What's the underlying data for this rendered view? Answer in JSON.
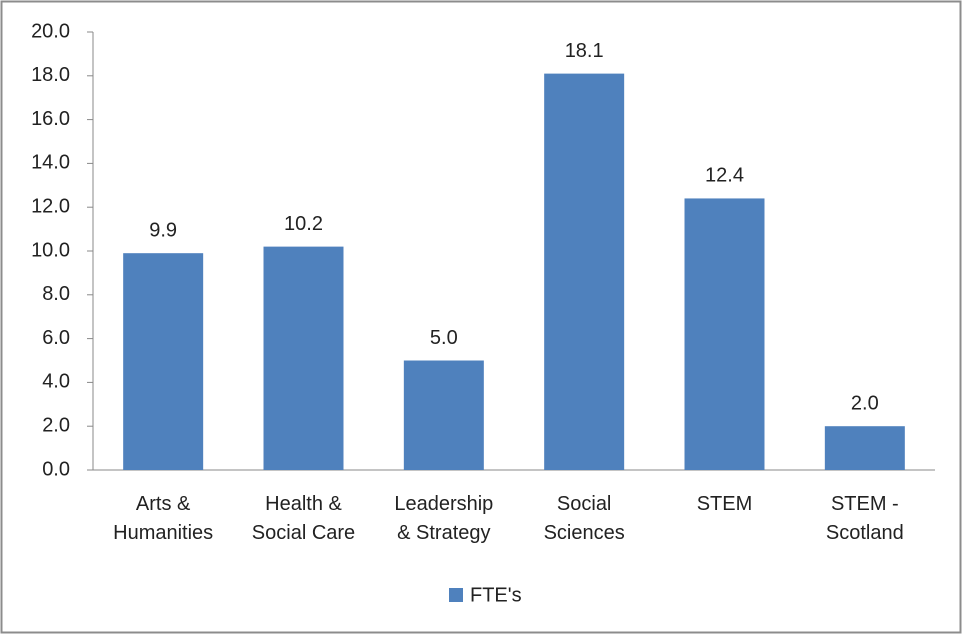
{
  "chart_data": {
    "type": "bar",
    "categories": [
      "Arts &\nHumanities",
      "Health &\nSocial Care",
      "Leadership\n& Strategy",
      "Social\nSciences",
      "STEM",
      "STEM -\nScotland"
    ],
    "series": [
      {
        "name": "FTE's",
        "color": "#4f81bd",
        "values": [
          9.9,
          10.2,
          5.0,
          18.1,
          12.4,
          2.0
        ],
        "value_labels": [
          "9.9",
          "10.2",
          "5.0",
          "18.1",
          "12.4",
          "2.0"
        ]
      }
    ],
    "ylim": [
      0,
      20
    ],
    "yticks": [
      {
        "value": 0,
        "label": "0.0"
      },
      {
        "value": 2,
        "label": "2.0"
      },
      {
        "value": 4,
        "label": "4.0"
      },
      {
        "value": 6,
        "label": "6.0"
      },
      {
        "value": 8,
        "label": "8.0"
      },
      {
        "value": 10,
        "label": "10.0"
      },
      {
        "value": 12,
        "label": "12.0"
      },
      {
        "value": 14,
        "label": "14.0"
      },
      {
        "value": 16,
        "label": "16.0"
      },
      {
        "value": 18,
        "label": "18.0"
      },
      {
        "value": 20,
        "label": "20.0"
      }
    ],
    "grid": false,
    "legend": "bottom"
  }
}
